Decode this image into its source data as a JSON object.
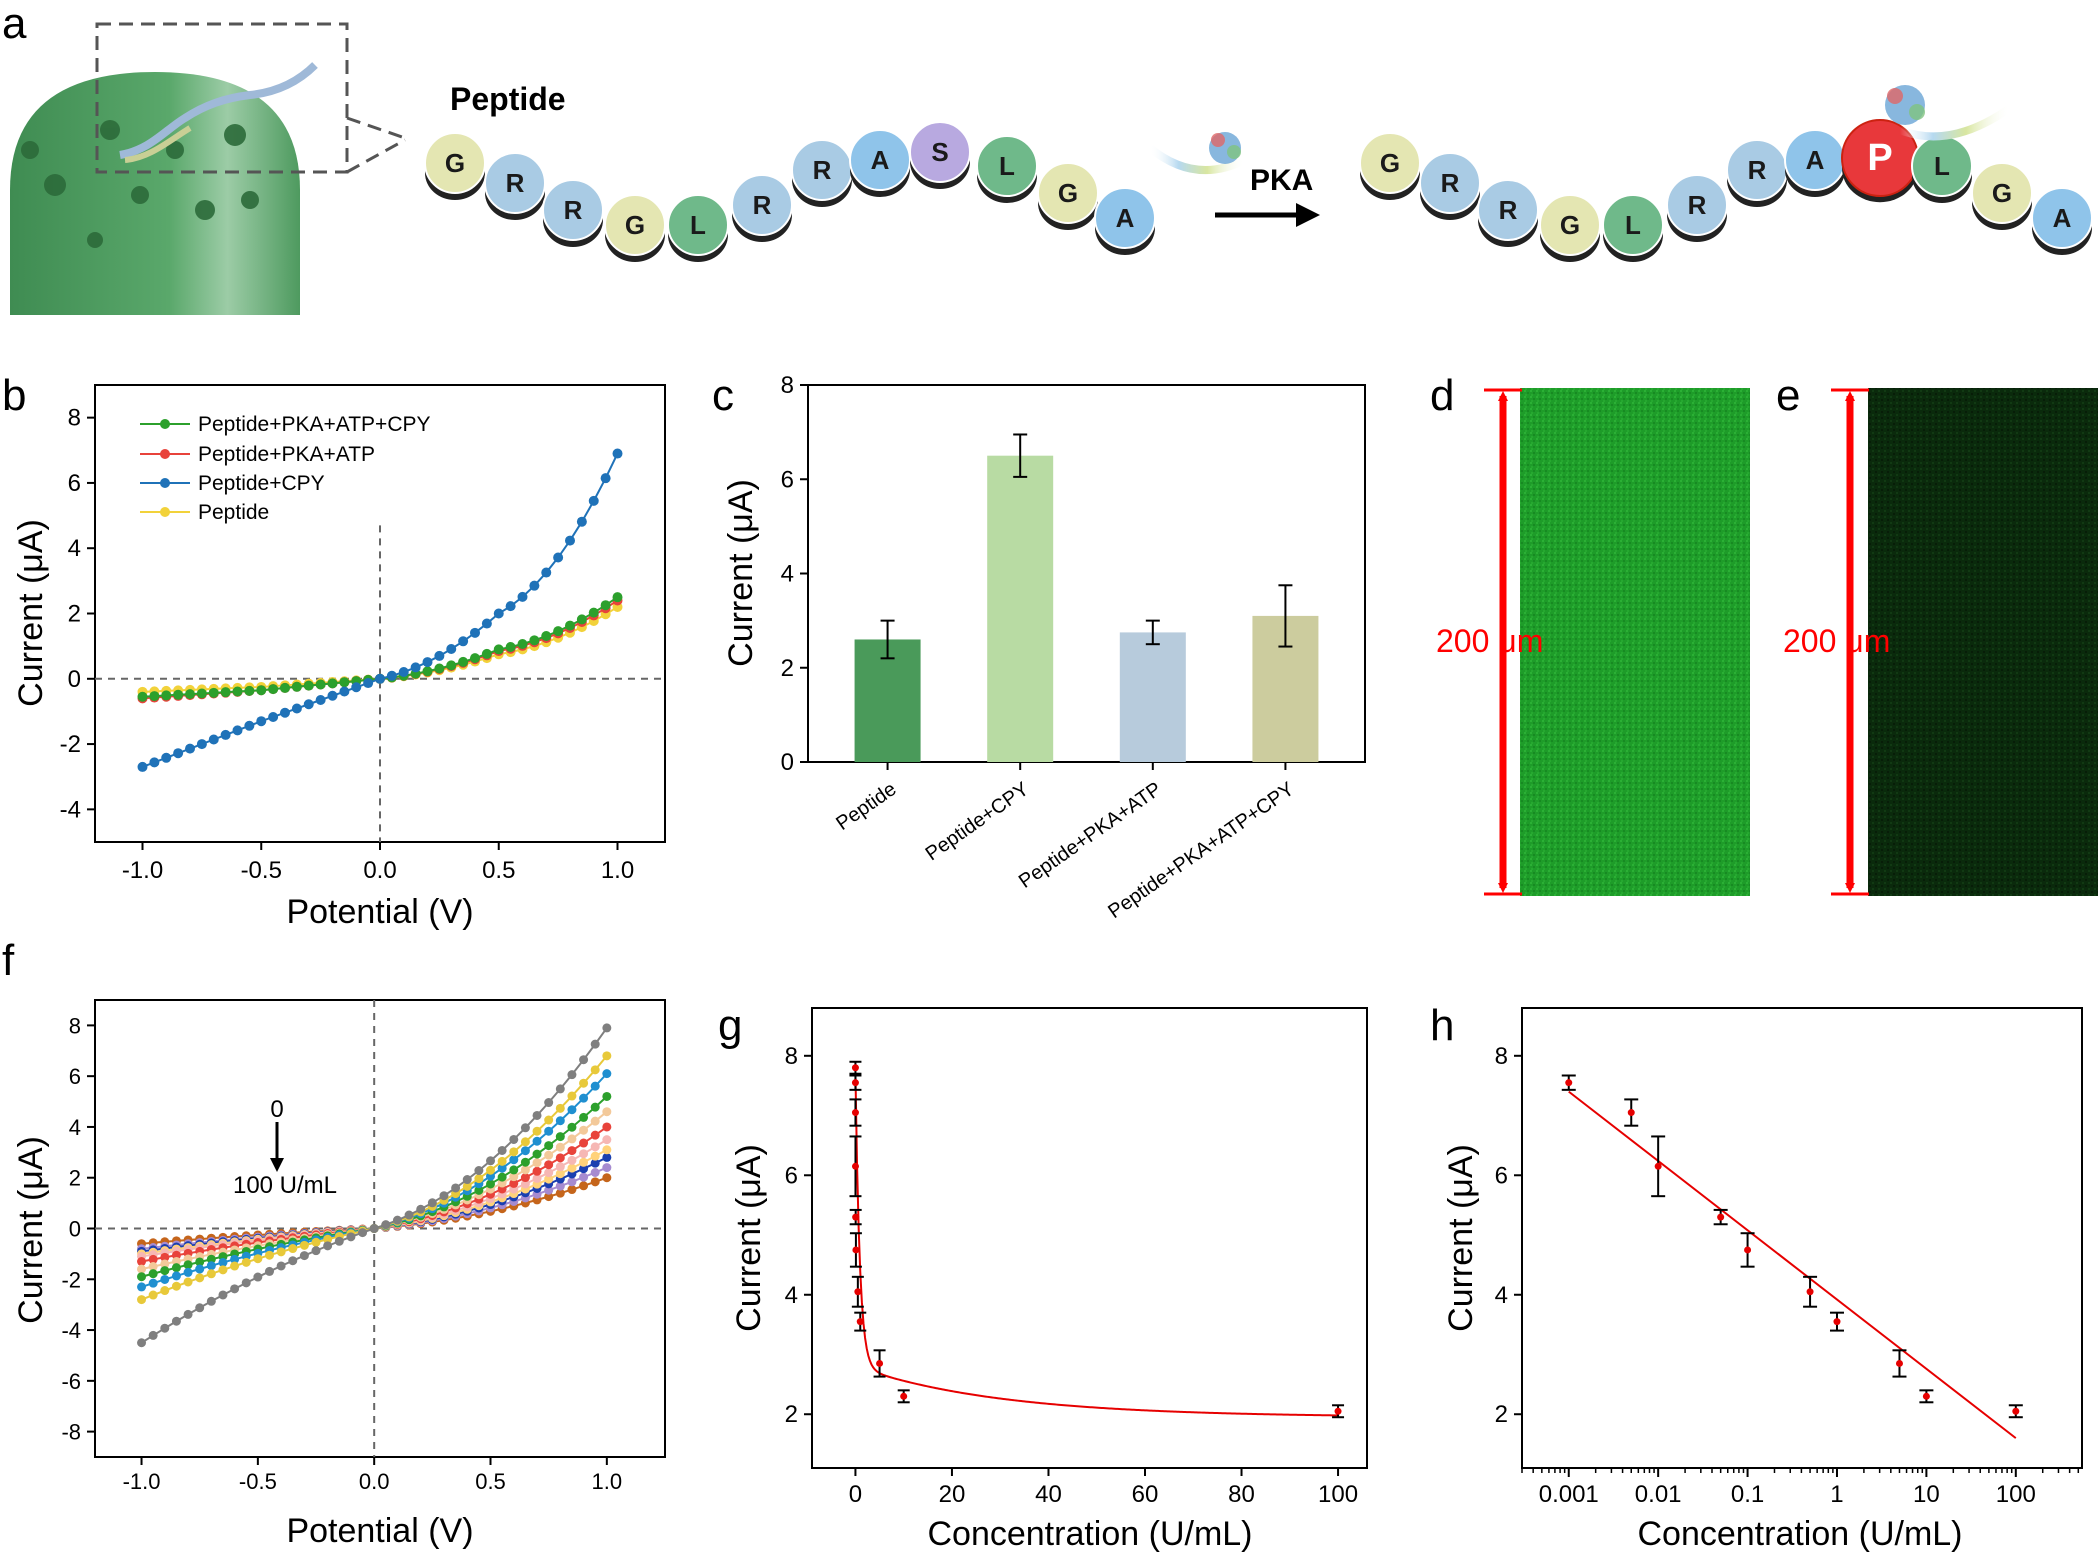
{
  "panel_letters": {
    "a": "a",
    "b": "b",
    "c": "c",
    "d": "d",
    "e": "e",
    "f": "f",
    "g": "g",
    "h": "h"
  },
  "schematic": {
    "peptide_label": "Peptide",
    "enzyme_label": "PKA",
    "phospho_label": "P",
    "sequence": [
      "G",
      "R",
      "R",
      "G",
      "L",
      "R",
      "R",
      "A",
      "S",
      "L",
      "G",
      "A"
    ],
    "sequence_after": [
      "G",
      "R",
      "R",
      "G",
      "L",
      "R",
      "R",
      "A",
      "P",
      "L",
      "G",
      "A"
    ],
    "residue_colors": {
      "G": "#e4e6b2",
      "R": "#a9cbe4",
      "L": "#6fb98a",
      "A": "#8fc4ea",
      "S": "#b8a9e0",
      "P": "#e8383b"
    },
    "cell_color": "#4e9a5f"
  },
  "scale_bar_label": "200 μm",
  "colors": {
    "red_bar": "#ff0000",
    "fluor_bright": "#1fa12a",
    "fluor_dim": "#0b2a0c",
    "fit_line": "#e60000"
  },
  "chart_data": [
    {
      "panel": "b",
      "type": "line",
      "xlabel": "Potential (V)",
      "ylabel": "Current (μA)",
      "xlim": [
        -1.2,
        1.2
      ],
      "ylim": [
        -5,
        9
      ],
      "xticks": [
        "-1.0",
        "-0.5",
        "0.0",
        "0.5",
        "1.0"
      ],
      "yticks": [
        "-4",
        "-2",
        "0",
        "2",
        "4",
        "6",
        "8"
      ],
      "grid": false,
      "legend_position": "top-left",
      "zero_lines": true,
      "series": [
        {
          "name": "Peptide+PKA+ATP+CPY",
          "color": "#2ca02c",
          "x": [
            -1.0,
            -0.5,
            0.0,
            0.5,
            1.0
          ],
          "y": [
            -0.55,
            -0.35,
            0.0,
            0.9,
            2.5
          ]
        },
        {
          "name": "Peptide+PKA+ATP",
          "color": "#e8433b",
          "x": [
            -1.0,
            -0.5,
            0.0,
            0.5,
            1.0
          ],
          "y": [
            -0.6,
            -0.35,
            0.0,
            0.85,
            2.4
          ]
        },
        {
          "name": "Peptide+CPY",
          "color": "#1f72b8",
          "x": [
            -1.0,
            -0.5,
            0.0,
            0.5,
            1.0
          ],
          "y": [
            -2.7,
            -1.3,
            0.0,
            2.0,
            6.9
          ]
        },
        {
          "name": "Peptide",
          "color": "#f2d23a",
          "x": [
            -1.0,
            -0.5,
            0.0,
            0.5,
            1.0
          ],
          "y": [
            -0.4,
            -0.25,
            0.0,
            0.75,
            2.2
          ]
        }
      ]
    },
    {
      "panel": "c",
      "type": "bar",
      "ylabel": "Current (μA)",
      "ylim": [
        0,
        8
      ],
      "yticks": [
        "0",
        "2",
        "4",
        "6",
        "8"
      ],
      "categories": [
        "Peptide",
        "Peptide+CPY",
        "Peptide+PKA+ATP",
        "Peptide+PKA+ATP+CPY"
      ],
      "values": [
        2.6,
        6.5,
        2.75,
        3.1
      ],
      "errors": [
        0.4,
        0.45,
        0.25,
        0.65
      ],
      "colors": [
        "#4a9a5a",
        "#b8dba3",
        "#b7cbdc",
        "#cccc9e"
      ]
    },
    {
      "panel": "f",
      "type": "line",
      "xlabel": "Potential (V)",
      "ylabel": "Current (μA)",
      "xlim": [
        -1.2,
        1.25
      ],
      "ylim": [
        -9,
        9
      ],
      "xticks": [
        "-1.0",
        "-0.5",
        "0.0",
        "0.5",
        "1.0"
      ],
      "yticks": [
        "-8",
        "-6",
        "-4",
        "-2",
        "0",
        "2",
        "4",
        "6",
        "8"
      ],
      "annotation_top": "0",
      "annotation_bottom": "100 U/mL",
      "zero_lines": true,
      "series": [
        {
          "color": "#7f7f7f",
          "x": [
            -1.0,
            1.0
          ],
          "y": [
            -4.5,
            7.9
          ]
        },
        {
          "color": "#e8c93a",
          "x": [
            -1.0,
            1.0
          ],
          "y": [
            -2.8,
            6.8
          ]
        },
        {
          "color": "#1f8fd0",
          "x": [
            -1.0,
            1.0
          ],
          "y": [
            -2.3,
            6.1
          ]
        },
        {
          "color": "#2ca02c",
          "x": [
            -1.0,
            1.0
          ],
          "y": [
            -1.9,
            5.2
          ]
        },
        {
          "color": "#f3c99a",
          "x": [
            -1.0,
            1.0
          ],
          "y": [
            -1.6,
            4.6
          ]
        },
        {
          "color": "#e8433b",
          "x": [
            -1.0,
            1.0
          ],
          "y": [
            -1.3,
            4.0
          ]
        },
        {
          "color": "#f6b7b4",
          "x": [
            -1.0,
            1.0
          ],
          "y": [
            -1.1,
            3.5
          ]
        },
        {
          "color": "#ffd27a",
          "x": [
            -1.0,
            1.0
          ],
          "y": [
            -1.0,
            3.1
          ]
        },
        {
          "color": "#1a3fb0",
          "x": [
            -1.0,
            1.0
          ],
          "y": [
            -0.9,
            2.8
          ]
        },
        {
          "color": "#a68bd0",
          "x": [
            -1.0,
            1.0
          ],
          "y": [
            -0.8,
            2.4
          ]
        },
        {
          "color": "#c5651b",
          "x": [
            -1.0,
            1.0
          ],
          "y": [
            -0.6,
            2.0
          ]
        }
      ]
    },
    {
      "panel": "g",
      "type": "scatter",
      "xlabel": "Concentration (U/mL)",
      "ylabel": "Current (μA)",
      "xlim": [
        -9,
        106
      ],
      "ylim": [
        1.1,
        8.8
      ],
      "xticks": [
        "0",
        "20",
        "40",
        "60",
        "80",
        "100"
      ],
      "yticks": [
        "2",
        "4",
        "6",
        "8"
      ],
      "x": [
        0,
        0.001,
        0.005,
        0.01,
        0.05,
        0.1,
        0.5,
        1,
        5,
        10,
        100
      ],
      "y": [
        7.8,
        7.55,
        7.05,
        6.15,
        5.3,
        4.75,
        4.05,
        3.55,
        2.85,
        2.3,
        2.05
      ],
      "errors": [
        0.1,
        0.12,
        0.22,
        0.5,
        0.12,
        0.28,
        0.25,
        0.15,
        0.22,
        0.1,
        0.1
      ],
      "fit": "exponential decay"
    },
    {
      "panel": "h",
      "type": "scatter",
      "xlabel": "Concentration (U/mL)",
      "ylabel": "Current (μA)",
      "xscale": "log",
      "xlim": [
        0.0003,
        550
      ],
      "ylim": [
        1.1,
        8.8
      ],
      "xticks": [
        "0.001",
        "0.01",
        "0.1",
        "1",
        "10",
        "100"
      ],
      "yticks": [
        "2",
        "4",
        "6",
        "8"
      ],
      "x": [
        0.001,
        0.005,
        0.01,
        0.05,
        0.1,
        0.5,
        1,
        5,
        10,
        100
      ],
      "y": [
        7.55,
        7.05,
        6.15,
        5.3,
        4.75,
        4.05,
        3.55,
        2.85,
        2.3,
        2.05
      ],
      "errors": [
        0.12,
        0.22,
        0.5,
        0.12,
        0.28,
        0.25,
        0.15,
        0.22,
        0.1,
        0.1
      ],
      "fit_line": {
        "x": [
          0.001,
          100
        ],
        "y": [
          7.4,
          1.6
        ]
      }
    }
  ]
}
